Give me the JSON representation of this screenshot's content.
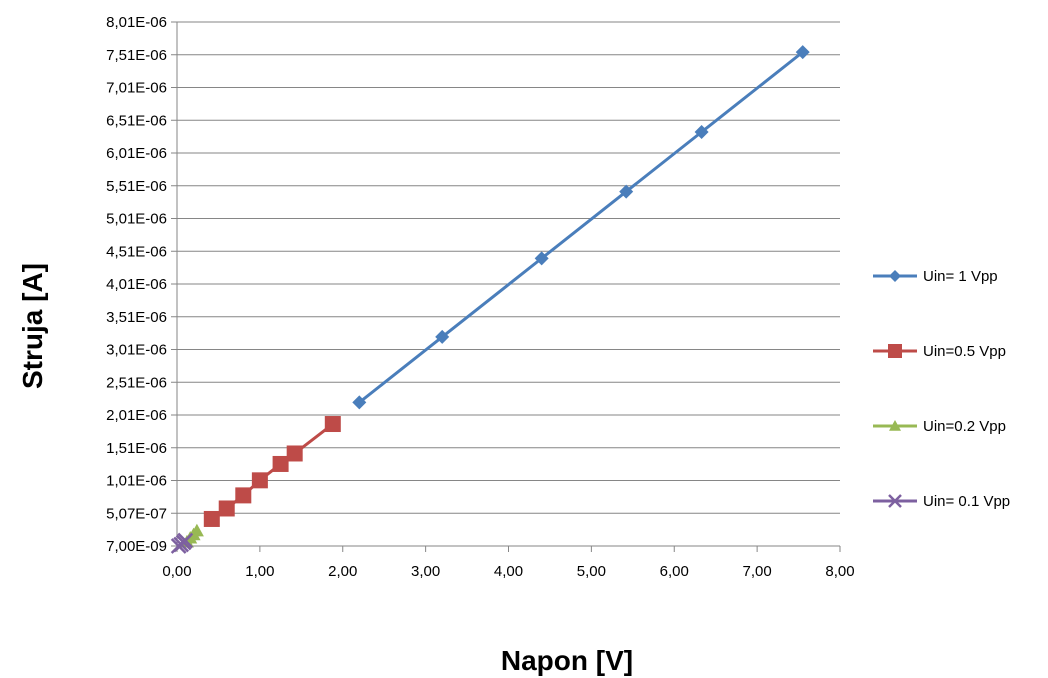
{
  "chart_data": {
    "type": "line",
    "xlabel": "Napon [V]",
    "ylabel": "Struja [A]",
    "xlim": [
      0,
      8
    ],
    "ylim": [
      7e-09,
      8.01e-06
    ],
    "x_ticks": [
      "0,00",
      "1,00",
      "2,00",
      "3,00",
      "4,00",
      "5,00",
      "6,00",
      "7,00",
      "8,00"
    ],
    "y_ticks": [
      "7,00E-09",
      "5,07E-07",
      "1,01E-06",
      "1,51E-06",
      "2,01E-06",
      "2,51E-06",
      "3,01E-06",
      "3,51E-06",
      "4,01E-06",
      "4,51E-06",
      "5,01E-06",
      "5,51E-06",
      "6,01E-06",
      "6,51E-06",
      "7,01E-06",
      "7,51E-06",
      "8,01E-06"
    ],
    "grid": "horizontal",
    "legend_position": "right",
    "series": [
      {
        "name": "Uin= 1 Vpp",
        "color": "#4A7EBB",
        "marker": "diamond",
        "x": [
          2.2,
          3.2,
          4.4,
          5.42,
          6.33,
          7.55
        ],
        "y": [
          2.2e-06,
          3.2e-06,
          4.4e-06,
          5.42e-06,
          6.33e-06,
          7.55e-06
        ]
      },
      {
        "name": "Uin=0.5 Vpp",
        "color": "#BE4B48",
        "marker": "square",
        "x": [
          0.42,
          0.6,
          0.8,
          1.0,
          1.25,
          1.42,
          1.88
        ],
        "y": [
          4.2e-07,
          5.8e-07,
          7.8e-07,
          1.01e-06,
          1.26e-06,
          1.42e-06,
          1.87e-06
        ]
      },
      {
        "name": "Uin=0.2 Vpp",
        "color": "#98B954",
        "marker": "triangle",
        "x": [
          0.12,
          0.16,
          0.2,
          0.24
        ],
        "y": [
          7e-08,
          1.3e-07,
          1.8e-07,
          2.4e-07
        ]
      },
      {
        "name": "Uin= 0.1 Vpp",
        "color": "#7D60A0",
        "marker": "x",
        "x": [
          0.02,
          0.05,
          0.08,
          0.1
        ],
        "y": [
          7e-09,
          3e-08,
          6e-08,
          9e-08
        ]
      }
    ]
  }
}
